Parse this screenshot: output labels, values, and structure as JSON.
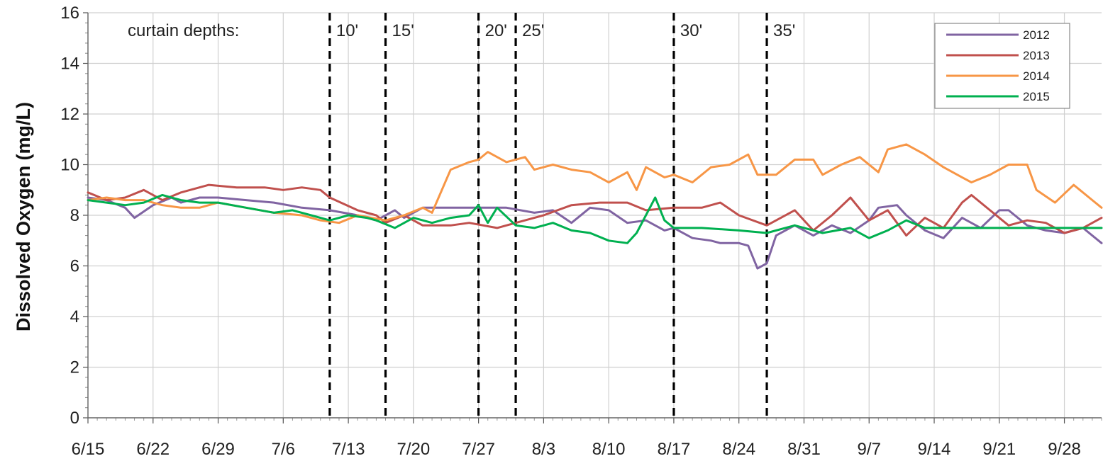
{
  "chart_data": {
    "type": "line",
    "xlabel": "",
    "ylabel": "Dissolved Oxygen (mg/L)",
    "x_axis": {
      "type": "date",
      "range": [
        "6/15",
        "10/2"
      ],
      "ticks": [
        "6/15",
        "6/22",
        "6/29",
        "7/6",
        "7/13",
        "7/20",
        "7/27",
        "8/3",
        "8/10",
        "8/17",
        "8/24",
        "8/31",
        "9/7",
        "9/14",
        "9/21",
        "9/28"
      ]
    },
    "ylim": [
      0,
      16
    ],
    "yticks": [
      0,
      2,
      4,
      6,
      8,
      10,
      12,
      14,
      16
    ],
    "grid": true,
    "legend": "top-right",
    "annotation_title": "curtain depths:",
    "vlines": [
      {
        "x": "7/11",
        "label": "10'"
      },
      {
        "x": "7/17",
        "label": "15'"
      },
      {
        "x": "7/27",
        "label": "20'"
      },
      {
        "x": "7/31",
        "label": "25'"
      },
      {
        "x": "8/17",
        "label": "30'"
      },
      {
        "x": "8/27",
        "label": "35'"
      }
    ],
    "series": [
      {
        "name": "2012",
        "color": "#8064A2",
        "points": [
          [
            "6/15",
            8.7
          ],
          [
            "6/17",
            8.6
          ],
          [
            "6/19",
            8.3
          ],
          [
            "6/20",
            7.9
          ],
          [
            "6/22",
            8.4
          ],
          [
            "6/24",
            8.7
          ],
          [
            "6/25",
            8.5
          ],
          [
            "6/27",
            8.7
          ],
          [
            "6/29",
            8.7
          ],
          [
            "7/2",
            8.6
          ],
          [
            "7/5",
            8.5
          ],
          [
            "7/8",
            8.3
          ],
          [
            "7/11",
            8.2
          ],
          [
            "7/14",
            8.0
          ],
          [
            "7/16",
            7.8
          ],
          [
            "7/18",
            8.2
          ],
          [
            "7/19",
            7.9
          ],
          [
            "7/21",
            8.3
          ],
          [
            "7/24",
            8.3
          ],
          [
            "7/27",
            8.3
          ],
          [
            "7/30",
            8.3
          ],
          [
            "8/2",
            8.1
          ],
          [
            "8/4",
            8.2
          ],
          [
            "8/6",
            7.7
          ],
          [
            "8/8",
            8.3
          ],
          [
            "8/10",
            8.2
          ],
          [
            "8/12",
            7.7
          ],
          [
            "8/14",
            7.8
          ],
          [
            "8/16",
            7.4
          ],
          [
            "8/17",
            7.5
          ],
          [
            "8/19",
            7.1
          ],
          [
            "8/21",
            7.0
          ],
          [
            "8/22",
            6.9
          ],
          [
            "8/24",
            6.9
          ],
          [
            "8/25",
            6.8
          ],
          [
            "8/26",
            5.9
          ],
          [
            "8/27",
            6.1
          ],
          [
            "8/28",
            7.2
          ],
          [
            "8/30",
            7.6
          ],
          [
            "9/1",
            7.2
          ],
          [
            "9/3",
            7.6
          ],
          [
            "9/5",
            7.3
          ],
          [
            "9/7",
            7.8
          ],
          [
            "9/8",
            8.3
          ],
          [
            "9/10",
            8.4
          ],
          [
            "9/11",
            8.0
          ],
          [
            "9/13",
            7.4
          ],
          [
            "9/15",
            7.1
          ],
          [
            "9/17",
            7.9
          ],
          [
            "9/19",
            7.5
          ],
          [
            "9/21",
            8.2
          ],
          [
            "9/22",
            8.2
          ],
          [
            "9/24",
            7.6
          ],
          [
            "9/26",
            7.4
          ],
          [
            "9/28",
            7.3
          ],
          [
            "9/30",
            7.5
          ],
          [
            "10/2",
            6.9
          ]
        ]
      },
      {
        "name": "2013",
        "color": "#C0504D",
        "points": [
          [
            "6/15",
            8.9
          ],
          [
            "6/17",
            8.6
          ],
          [
            "6/19",
            8.7
          ],
          [
            "6/21",
            9.0
          ],
          [
            "6/23",
            8.6
          ],
          [
            "6/25",
            8.9
          ],
          [
            "6/28",
            9.2
          ],
          [
            "7/1",
            9.1
          ],
          [
            "7/4",
            9.1
          ],
          [
            "7/6",
            9.0
          ],
          [
            "7/8",
            9.1
          ],
          [
            "7/10",
            9.0
          ],
          [
            "7/11",
            8.7
          ],
          [
            "7/14",
            8.2
          ],
          [
            "7/16",
            8.0
          ],
          [
            "7/17",
            7.7
          ],
          [
            "7/19",
            8.0
          ],
          [
            "7/21",
            7.6
          ],
          [
            "7/24",
            7.6
          ],
          [
            "7/26",
            7.7
          ],
          [
            "7/29",
            7.5
          ],
          [
            "7/31",
            7.7
          ],
          [
            "8/3",
            8.0
          ],
          [
            "8/6",
            8.4
          ],
          [
            "8/9",
            8.5
          ],
          [
            "8/12",
            8.5
          ],
          [
            "8/14",
            8.2
          ],
          [
            "8/17",
            8.3
          ],
          [
            "8/20",
            8.3
          ],
          [
            "8/22",
            8.5
          ],
          [
            "8/24",
            8.0
          ],
          [
            "8/27",
            7.6
          ],
          [
            "8/30",
            8.2
          ],
          [
            "9/1",
            7.4
          ],
          [
            "9/3",
            8.0
          ],
          [
            "9/5",
            8.7
          ],
          [
            "9/7",
            7.8
          ],
          [
            "9/9",
            8.2
          ],
          [
            "9/11",
            7.2
          ],
          [
            "9/13",
            7.9
          ],
          [
            "9/15",
            7.5
          ],
          [
            "9/17",
            8.5
          ],
          [
            "9/18",
            8.8
          ],
          [
            "9/20",
            8.2
          ],
          [
            "9/22",
            7.6
          ],
          [
            "9/24",
            7.8
          ],
          [
            "9/26",
            7.7
          ],
          [
            "9/28",
            7.3
          ],
          [
            "9/30",
            7.5
          ],
          [
            "10/2",
            7.9
          ]
        ]
      },
      {
        "name": "2014",
        "color": "#F79646",
        "points": [
          [
            "6/15",
            8.6
          ],
          [
            "6/17",
            8.7
          ],
          [
            "6/19",
            8.6
          ],
          [
            "6/21",
            8.6
          ],
          [
            "6/23",
            8.4
          ],
          [
            "6/25",
            8.3
          ],
          [
            "6/27",
            8.3
          ],
          [
            "6/29",
            8.5
          ],
          [
            "7/2",
            8.3
          ],
          [
            "7/5",
            8.1
          ],
          [
            "7/8",
            8.0
          ],
          [
            "7/10",
            7.8
          ],
          [
            "7/12",
            7.7
          ],
          [
            "7/14",
            8.0
          ],
          [
            "7/17",
            7.8
          ],
          [
            "7/19",
            8.0
          ],
          [
            "7/21",
            8.3
          ],
          [
            "7/22",
            8.1
          ],
          [
            "7/24",
            9.8
          ],
          [
            "7/26",
            10.1
          ],
          [
            "7/27",
            10.2
          ],
          [
            "7/28",
            10.5
          ],
          [
            "7/30",
            10.1
          ],
          [
            "8/1",
            10.3
          ],
          [
            "8/2",
            9.8
          ],
          [
            "8/4",
            10.0
          ],
          [
            "8/6",
            9.8
          ],
          [
            "8/8",
            9.7
          ],
          [
            "8/10",
            9.3
          ],
          [
            "8/12",
            9.7
          ],
          [
            "8/13",
            9.0
          ],
          [
            "8/14",
            9.9
          ],
          [
            "8/16",
            9.5
          ],
          [
            "8/17",
            9.6
          ],
          [
            "8/19",
            9.3
          ],
          [
            "8/21",
            9.9
          ],
          [
            "8/23",
            10.0
          ],
          [
            "8/25",
            10.4
          ],
          [
            "8/26",
            9.6
          ],
          [
            "8/28",
            9.6
          ],
          [
            "8/30",
            10.2
          ],
          [
            "9/1",
            10.2
          ],
          [
            "9/2",
            9.6
          ],
          [
            "9/4",
            10.0
          ],
          [
            "9/6",
            10.3
          ],
          [
            "9/8",
            9.7
          ],
          [
            "9/9",
            10.6
          ],
          [
            "9/11",
            10.8
          ],
          [
            "9/13",
            10.4
          ],
          [
            "9/15",
            9.9
          ],
          [
            "9/17",
            9.5
          ],
          [
            "9/18",
            9.3
          ],
          [
            "9/20",
            9.6
          ],
          [
            "9/22",
            10.0
          ],
          [
            "9/24",
            10.0
          ],
          [
            "9/25",
            9.0
          ],
          [
            "9/27",
            8.5
          ],
          [
            "9/29",
            9.2
          ],
          [
            "10/1",
            8.6
          ],
          [
            "10/2",
            8.3
          ]
        ]
      },
      {
        "name": "2015",
        "color": "#00B050",
        "points": [
          [
            "6/15",
            8.6
          ],
          [
            "6/17",
            8.5
          ],
          [
            "6/19",
            8.4
          ],
          [
            "6/21",
            8.5
          ],
          [
            "6/23",
            8.8
          ],
          [
            "6/25",
            8.6
          ],
          [
            "6/27",
            8.5
          ],
          [
            "6/29",
            8.5
          ],
          [
            "7/2",
            8.3
          ],
          [
            "7/5",
            8.1
          ],
          [
            "7/7",
            8.2
          ],
          [
            "7/9",
            8.0
          ],
          [
            "7/11",
            7.8
          ],
          [
            "7/13",
            8.0
          ],
          [
            "7/15",
            7.9
          ],
          [
            "7/16",
            7.8
          ],
          [
            "7/18",
            7.5
          ],
          [
            "7/20",
            7.9
          ],
          [
            "7/22",
            7.7
          ],
          [
            "7/24",
            7.9
          ],
          [
            "7/26",
            8.0
          ],
          [
            "7/27",
            8.4
          ],
          [
            "7/28",
            7.7
          ],
          [
            "7/29",
            8.3
          ],
          [
            "7/31",
            7.6
          ],
          [
            "8/2",
            7.5
          ],
          [
            "8/4",
            7.7
          ],
          [
            "8/6",
            7.4
          ],
          [
            "8/8",
            7.3
          ],
          [
            "8/10",
            7.0
          ],
          [
            "8/12",
            6.9
          ],
          [
            "8/13",
            7.3
          ],
          [
            "8/15",
            8.7
          ],
          [
            "8/16",
            7.8
          ],
          [
            "8/17",
            7.5
          ],
          [
            "8/20",
            7.5
          ],
          [
            "8/24",
            7.4
          ],
          [
            "8/27",
            7.3
          ],
          [
            "8/30",
            7.6
          ],
          [
            "9/2",
            7.3
          ],
          [
            "9/5",
            7.5
          ],
          [
            "9/7",
            7.1
          ],
          [
            "9/9",
            7.4
          ],
          [
            "9/11",
            7.8
          ],
          [
            "9/13",
            7.5
          ],
          [
            "9/17",
            7.5
          ],
          [
            "9/21",
            7.5
          ],
          [
            "9/25",
            7.5
          ],
          [
            "9/28",
            7.5
          ],
          [
            "10/2",
            7.5
          ]
        ]
      }
    ]
  }
}
